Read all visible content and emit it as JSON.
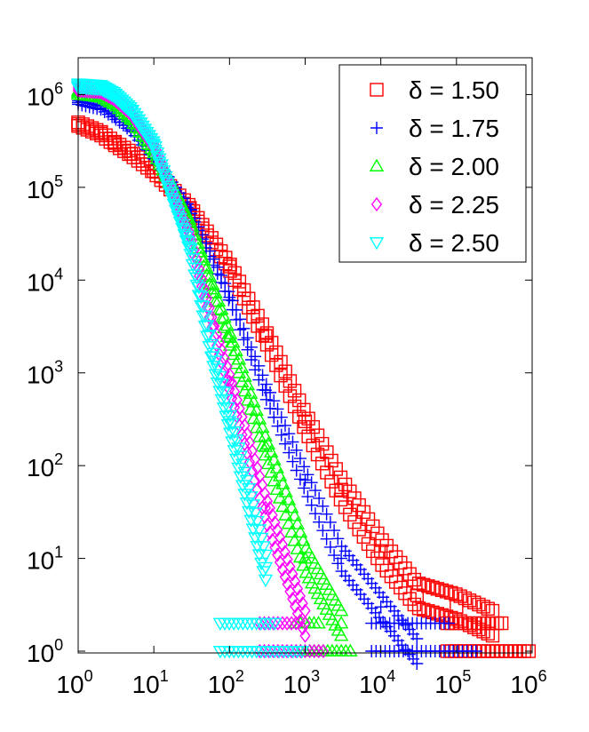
{
  "chart_data": {
    "type": "scatter",
    "title": "",
    "xlabel": "",
    "ylabel": "",
    "xscale": "log",
    "yscale": "log",
    "xlim": [
      1,
      1000000
    ],
    "ylim": [
      1,
      2000000
    ],
    "x_ticks": [
      {
        "base": "10",
        "exp": "0",
        "value": 1
      },
      {
        "base": "10",
        "exp": "1",
        "value": 10
      },
      {
        "base": "10",
        "exp": "2",
        "value": 100
      },
      {
        "base": "10",
        "exp": "3",
        "value": 1000
      },
      {
        "base": "10",
        "exp": "4",
        "value": 10000
      },
      {
        "base": "10",
        "exp": "5",
        "value": 100000
      },
      {
        "base": "10",
        "exp": "6",
        "value": 1000000
      }
    ],
    "y_ticks": [
      {
        "base": "10",
        "exp": "0",
        "value": 1
      },
      {
        "base": "10",
        "exp": "1",
        "value": 10
      },
      {
        "base": "10",
        "exp": "2",
        "value": 100
      },
      {
        "base": "10",
        "exp": "3",
        "value": 1000
      },
      {
        "base": "10",
        "exp": "4",
        "value": 10000
      },
      {
        "base": "10",
        "exp": "5",
        "value": 100000
      },
      {
        "base": "10",
        "exp": "6",
        "value": 1000000
      }
    ],
    "grid": false,
    "legend_position": "top-right",
    "series": [
      {
        "name": "δ = 1.50",
        "marker": "square",
        "color": "#ff0000",
        "x": [
          1,
          2,
          3,
          5,
          10,
          30,
          100,
          300,
          1000,
          3000,
          10000,
          30000,
          100000,
          300000
        ],
        "y": [
          480000,
          380000,
          300000,
          230000,
          150000,
          60000,
          14000,
          2500,
          300,
          55,
          12,
          4,
          3,
          2
        ]
      },
      {
        "name": "δ = 1.75",
        "marker": "plus",
        "color": "#0000ff",
        "x": [
          1,
          2,
          3,
          5,
          10,
          30,
          100,
          300,
          1000,
          3000,
          10000,
          30000
        ],
        "y": [
          820000,
          720000,
          580000,
          420000,
          210000,
          58000,
          6500,
          650,
          70,
          10,
          3,
          1
        ]
      },
      {
        "name": "δ = 2.00",
        "marker": "triangle-up",
        "color": "#00ff00",
        "x": [
          1,
          2,
          3,
          5,
          10,
          30,
          60,
          100,
          300,
          1000,
          3000
        ],
        "y": [
          1050000,
          980000,
          820000,
          560000,
          250000,
          42000,
          8000,
          2400,
          160,
          10,
          2
        ]
      },
      {
        "name": "δ = 2.25",
        "marker": "diamond",
        "color": "#ff00ff",
        "x": [
          1,
          2,
          3,
          5,
          10,
          30,
          60,
          100,
          300,
          1000
        ],
        "y": [
          1150000,
          1100000,
          920000,
          640000,
          280000,
          30000,
          3200,
          800,
          35,
          2
        ]
      },
      {
        "name": "δ = 2.50",
        "marker": "triangle-down",
        "color": "#00ffff",
        "x": [
          1,
          2,
          3,
          5,
          10,
          30,
          60,
          100,
          300
        ],
        "y": [
          1250000,
          1200000,
          1000000,
          680000,
          290000,
          22000,
          1500,
          300,
          8
        ]
      }
    ]
  }
}
